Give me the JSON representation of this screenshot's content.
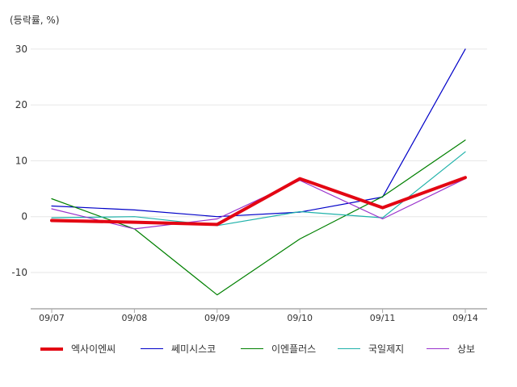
{
  "chart_data": {
    "type": "line",
    "unit_label": "(등락률, %)",
    "categories": [
      "09/07",
      "09/08",
      "09/09",
      "09/10",
      "09/11",
      "09/14"
    ],
    "yticks": [
      30,
      20,
      10,
      0,
      -10
    ],
    "ylim": [
      -16.5,
      32
    ],
    "series": [
      {
        "name": "엑사이엔씨",
        "color": "#e30613",
        "width": 4,
        "values": [
          -0.7,
          -1.0,
          -1.4,
          6.8,
          1.6,
          7.0
        ]
      },
      {
        "name": "쎄미시스코",
        "color": "#0000c8",
        "width": 1.2,
        "values": [
          1.9,
          1.2,
          0.0,
          0.8,
          3.5,
          30.0
        ]
      },
      {
        "name": "이엔플러스",
        "color": "#008000",
        "width": 1.2,
        "values": [
          3.2,
          -2.2,
          -14.0,
          -4.0,
          3.6,
          13.7
        ]
      },
      {
        "name": "국일제지",
        "color": "#20b2aa",
        "width": 1.2,
        "values": [
          -0.2,
          0.0,
          -1.6,
          0.9,
          -0.2,
          11.6
        ]
      },
      {
        "name": "상보",
        "color": "#9932cc",
        "width": 1.2,
        "values": [
          1.4,
          -2.2,
          -0.4,
          6.5,
          -0.4,
          6.8
        ]
      }
    ]
  }
}
